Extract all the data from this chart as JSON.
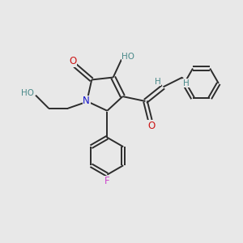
{
  "bg_color": "#e8e8e8",
  "bond_color": "#2c2c2c",
  "N_color": "#1515cc",
  "O_color": "#cc1515",
  "F_color": "#cc44cc",
  "OH_color": "#4a8a8a",
  "H_color": "#4a8a8a",
  "figsize": [
    3.0,
    3.0
  ],
  "dpi": 100,
  "xlim": [
    0,
    10
  ],
  "ylim": [
    0,
    10
  ]
}
